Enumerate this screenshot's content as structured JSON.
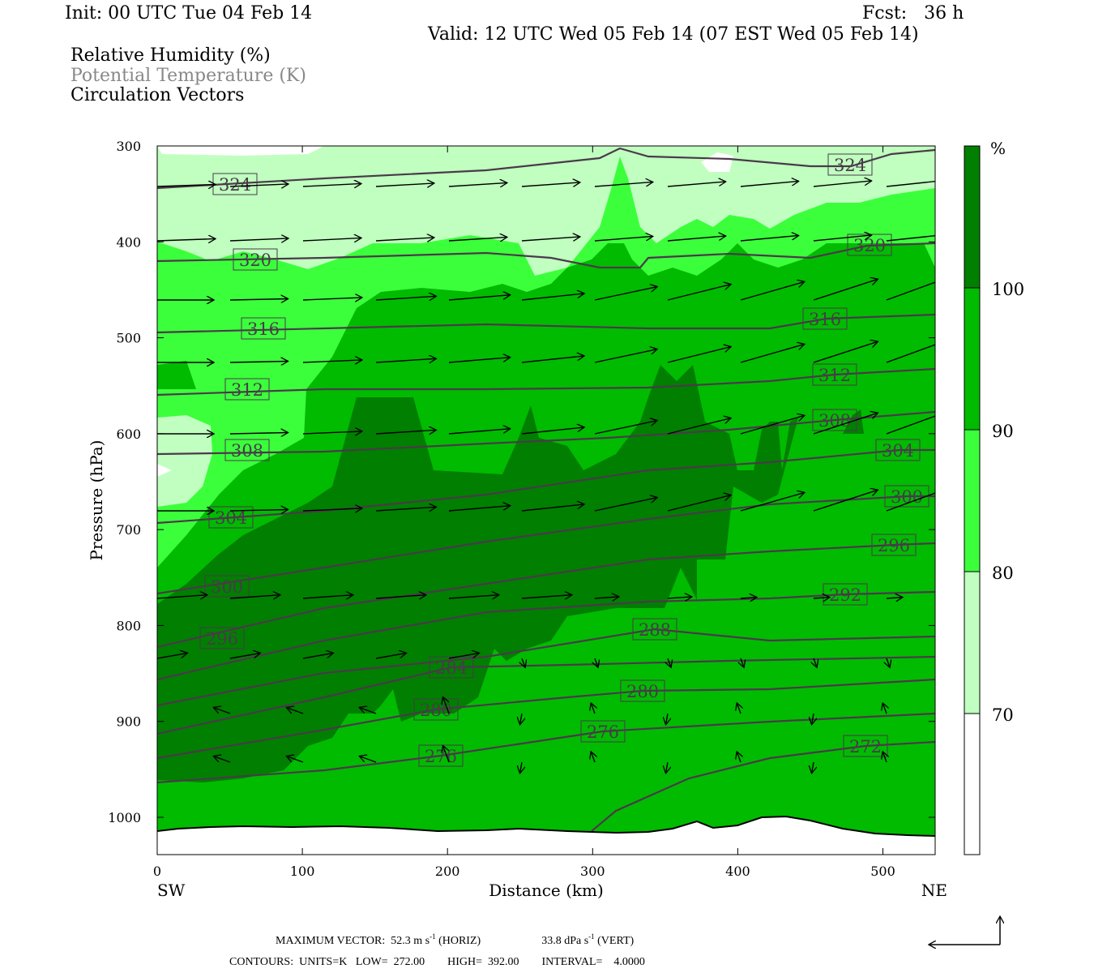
{
  "header": {
    "init": "Init: 00 UTC Tue 04 Feb 14",
    "fcst": "Fcst:   36 h",
    "valid": "Valid: 12 UTC Wed 05 Feb 14 (07 EST Wed 05 Feb 14)"
  },
  "legend": {
    "field1": "Relative Humidity (%)",
    "field2": "Potential Temperature (K)",
    "field3": "Circulation Vectors"
  },
  "footer": {
    "max_vector_label": "MAXIMUM VECTOR:",
    "max_horiz": "52.3 m s",
    "horiz_suffix": "(HORIZ)",
    "max_vert": "33.8 dPa s",
    "vert_suffix": "(VERT)",
    "exponent": "-1",
    "contours": "CONTOURS:  UNITS=K   LOW=  272.00        HIGH=  392.00        INTERVAL=    4.0000"
  },
  "chart_data": {
    "type": "heatmap",
    "subtype": "vertical cross-section (filled contours + line contours + vectors)",
    "xlabel": "Distance (km)",
    "ylabel": "Pressure (hPa)",
    "xlim": [
      0,
      536
    ],
    "ylim": [
      1039,
      300
    ],
    "x_ticks": [
      "0",
      "100",
      "200",
      "300",
      "400",
      "500"
    ],
    "y_ticks": [
      "300",
      "400",
      "500",
      "600",
      "700",
      "800",
      "900",
      "1000"
    ],
    "x_end_labels": {
      "left": "SW",
      "right": "NE"
    },
    "colorbar": {
      "unit": "%",
      "levels": [
        "70",
        "80",
        "90",
        "100"
      ],
      "colors": [
        "#ffffff",
        "#c0ffc0",
        "#3cff3c",
        "#00bb00",
        "#007f00"
      ]
    },
    "theta_contour_labels": [
      {
        "value": "324",
        "count": 2
      },
      {
        "value": "320",
        "count": 2
      },
      {
        "value": "316",
        "count": 2
      },
      {
        "value": "312",
        "count": 2
      },
      {
        "value": "308",
        "count": 2
      },
      {
        "value": "304",
        "count": 2
      },
      {
        "value": "300",
        "count": 2
      },
      {
        "value": "296",
        "count": 2
      },
      {
        "value": "292",
        "count": 1
      },
      {
        "value": "288",
        "count": 1
      },
      {
        "value": "284",
        "count": 1
      },
      {
        "value": "280",
        "count": 2
      },
      {
        "value": "276",
        "count": 2
      },
      {
        "value": "272",
        "count": 1
      }
    ],
    "contour_color": "#4a3a4a"
  }
}
